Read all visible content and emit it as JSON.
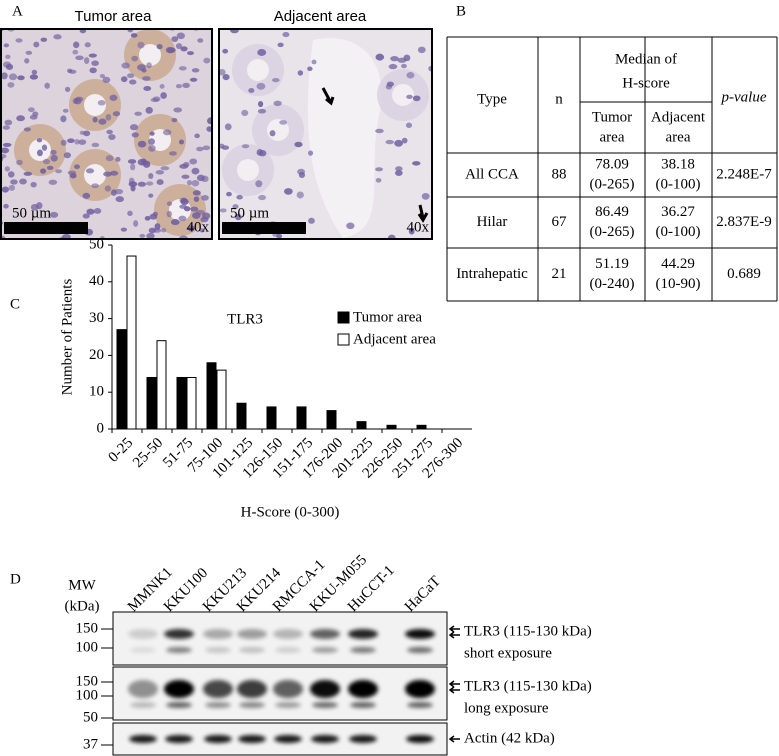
{
  "panel_a": {
    "label": "A",
    "titles": [
      "Tumor area",
      "Adjacent area"
    ],
    "scale_bars": [
      "50 µm",
      "50 µm"
    ],
    "magnifications": [
      "40x",
      "40x"
    ]
  },
  "panel_b": {
    "label": "B",
    "header": {
      "type": "Type",
      "n": "n",
      "median": [
        "Median of",
        "H-score"
      ],
      "tumor": [
        "Tumor",
        "area"
      ],
      "adjacent": [
        "Adjacent",
        "area"
      ],
      "p": "p-value"
    },
    "rows": [
      {
        "type": "All CCA",
        "n": "88",
        "tumor": [
          "78.09",
          "(0-265)"
        ],
        "adjacent": [
          "38.18",
          "(0-100)"
        ],
        "p": "2.248E-7"
      },
      {
        "type": "Hilar",
        "n": "67",
        "tumor": [
          "86.49",
          "(0-265)"
        ],
        "adjacent": [
          "36.27",
          "(0-100)"
        ],
        "p": "2.837E-9"
      },
      {
        "type": "Intrahepatic",
        "n": "21",
        "tumor": [
          "51.19",
          "(0-240)"
        ],
        "adjacent": [
          "44.29",
          "(10-90)"
        ],
        "p": "0.689"
      }
    ]
  },
  "chart_data": {
    "type": "bar",
    "label": "C",
    "title": "TLR3",
    "xlabel": "H-Score (0-300)",
    "ylabel": "Number of Patients",
    "categories": [
      "0-25",
      "25-50",
      "51-75",
      "75-100",
      "101-125",
      "126-150",
      "151-175",
      "176-200",
      "201-225",
      "226-250",
      "251-275",
      "276-300"
    ],
    "series": [
      {
        "name": "Tumor area",
        "color": "#000000",
        "values": [
          27,
          14,
          14,
          18,
          7,
          6,
          6,
          5,
          2,
          1,
          1,
          0
        ]
      },
      {
        "name": "Adjacent area",
        "color": "#ffffff",
        "values": [
          47,
          24,
          14,
          16,
          0,
          0,
          0,
          0,
          0,
          0,
          0,
          0
        ]
      }
    ],
    "ylim": [
      0,
      50
    ],
    "yticks": [
      0,
      10,
      20,
      30,
      40,
      50
    ]
  },
  "panel_d": {
    "label": "D",
    "mw": [
      "MW",
      "(kDa)"
    ],
    "lanes": [
      "MMNK1",
      "KKU100",
      "KKU213",
      "KKU214",
      "RMCCA-1",
      "KKU-M055",
      "HuCCT-1",
      "HaCaT"
    ],
    "blots": [
      {
        "markers": [
          "150",
          "100"
        ],
        "labels": [
          "TLR3 (115-130 kDa)",
          "short exposure"
        ]
      },
      {
        "markers": [
          "150",
          "100"
        ],
        "labels": [
          "TLR3 (115-130 kDa)",
          "long exposure"
        ]
      },
      {
        "markers": [
          "50",
          "37"
        ],
        "labels": [
          "Actin (42 kDa)"
        ]
      }
    ]
  }
}
